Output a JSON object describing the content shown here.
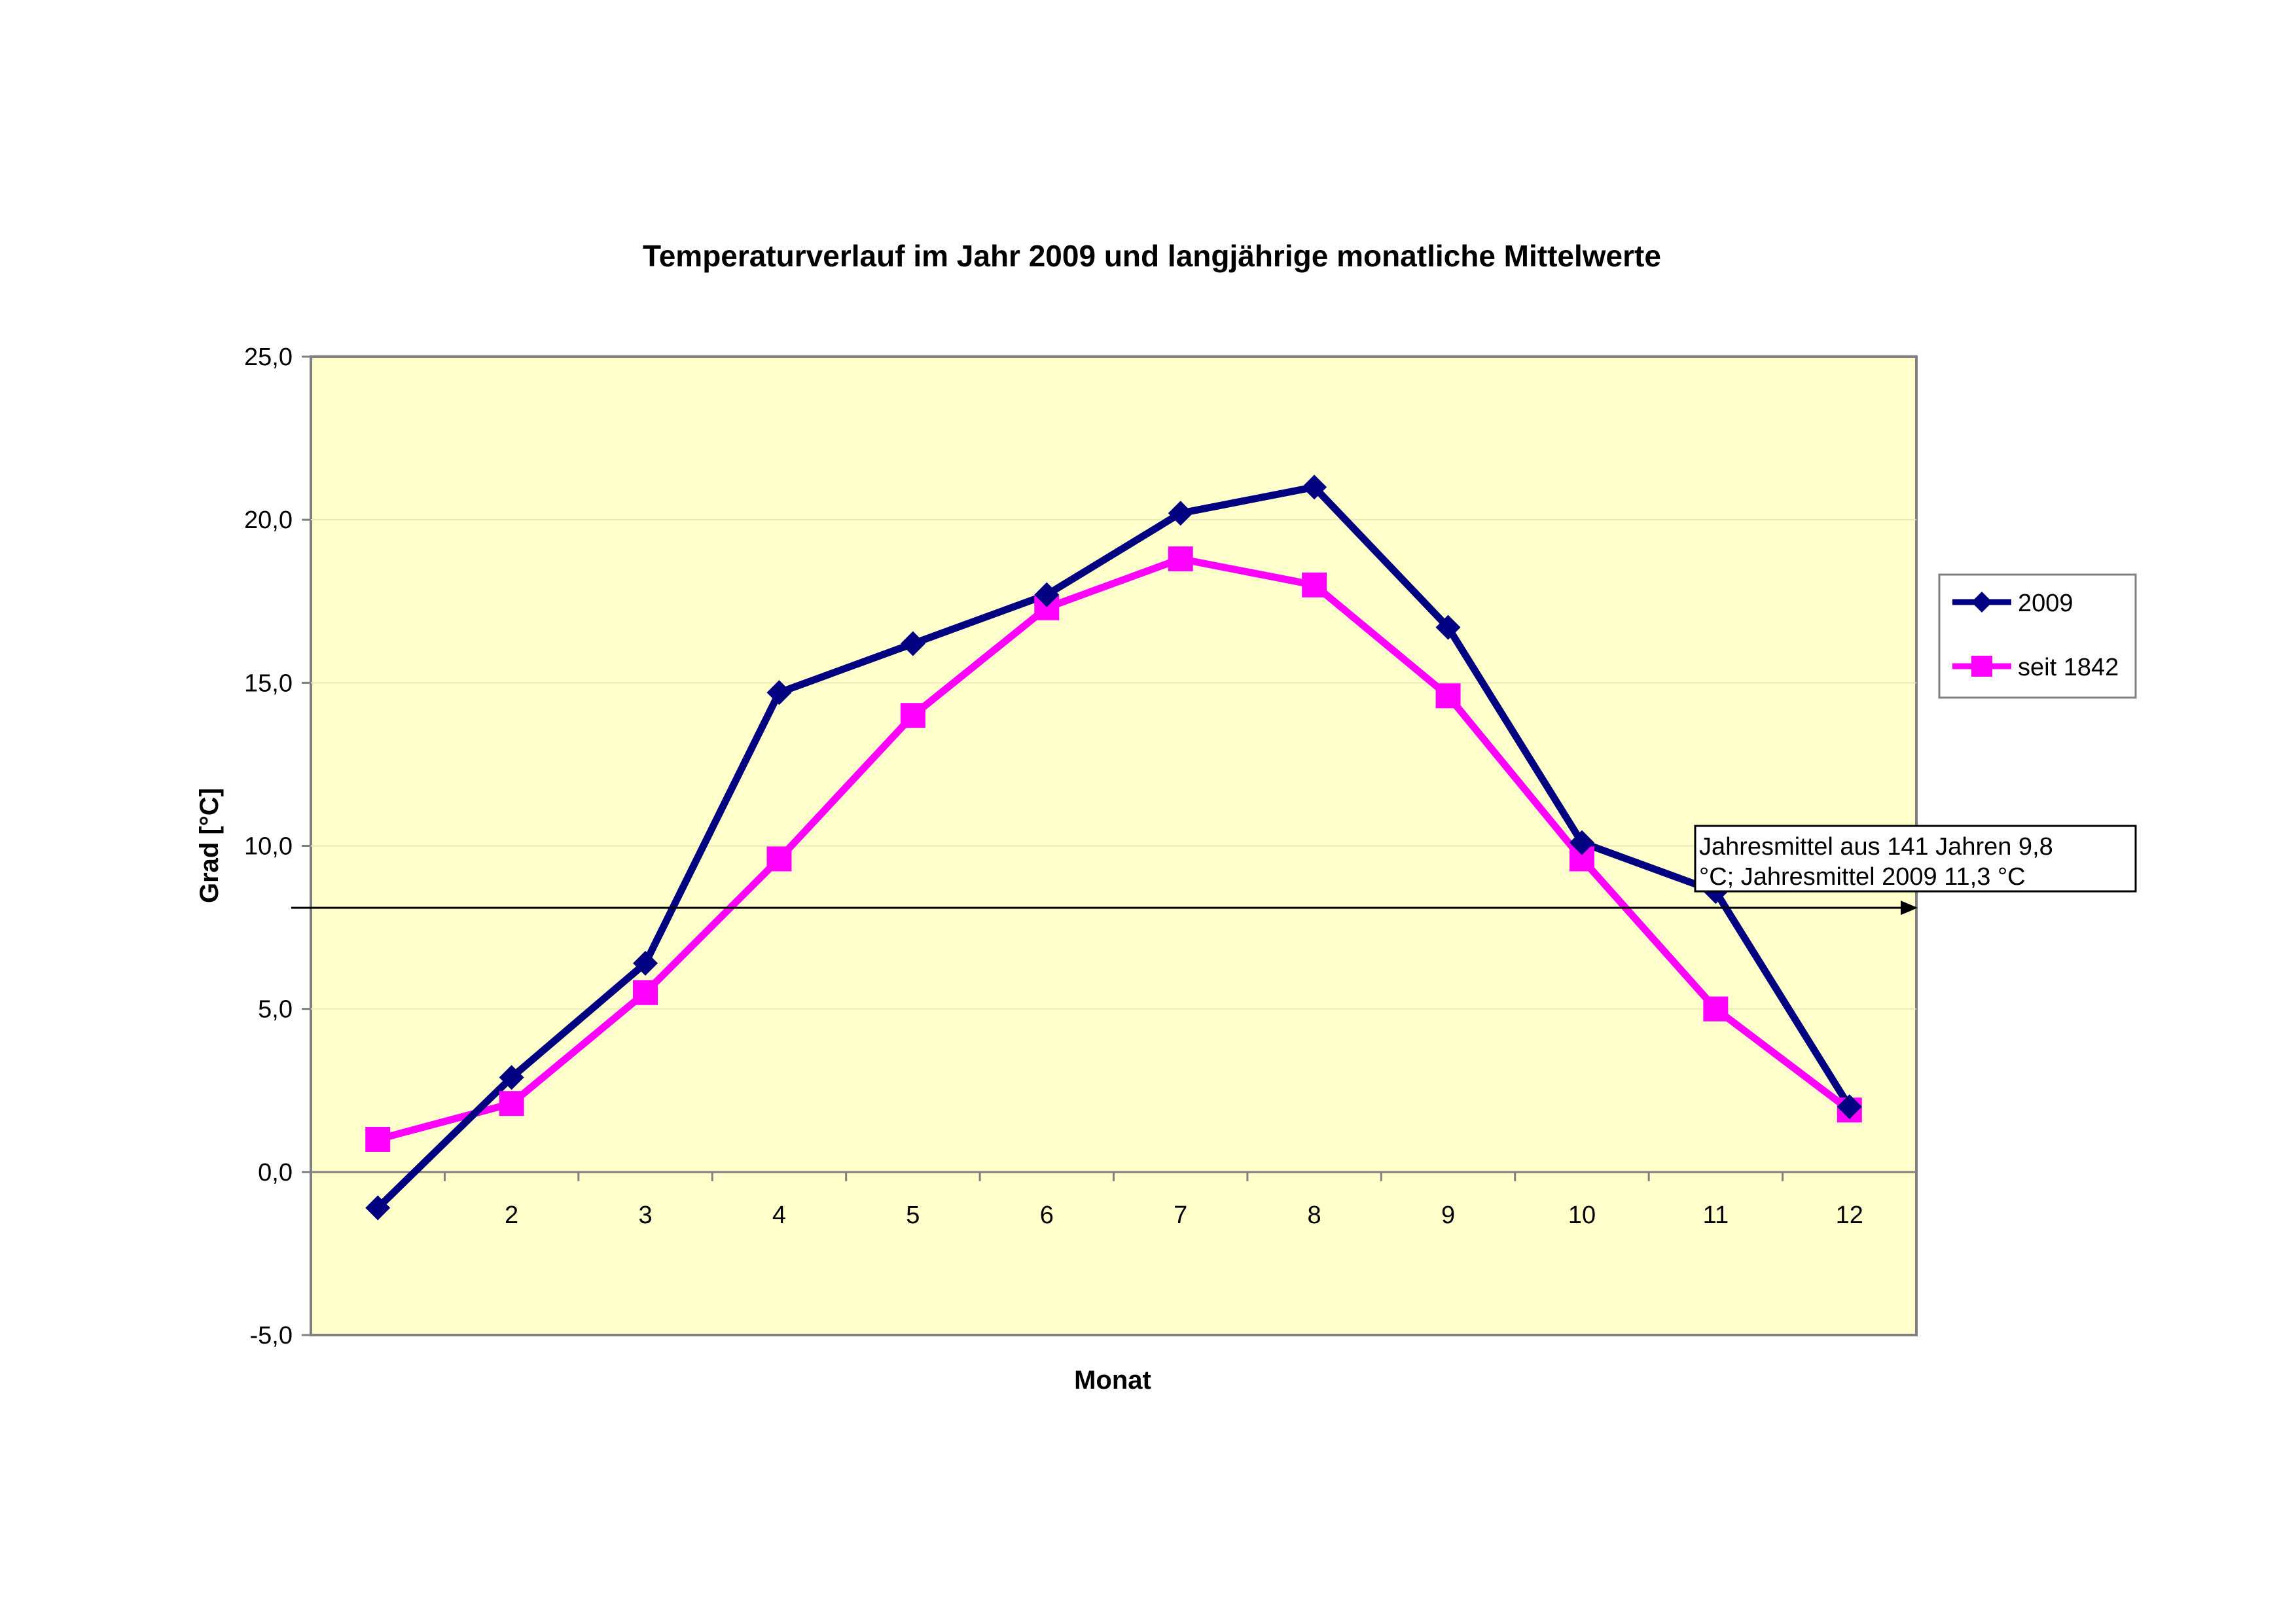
{
  "chart_data": {
    "type": "line",
    "title": "Temperaturverlauf im Jahr 2009 und langjährige monatliche Mittelwerte",
    "xlabel": "Monat",
    "ylabel": "Grad [°C]",
    "x": [
      1,
      2,
      3,
      4,
      5,
      6,
      7,
      8,
      9,
      10,
      11,
      12
    ],
    "x_tick_labels": [
      "",
      "2",
      "3",
      "4",
      "5",
      "6",
      "7",
      "8",
      "9",
      "10",
      "11",
      "12"
    ],
    "y_tick_labels": [
      "-5,0",
      "0,0",
      "5,0",
      "10,0",
      "15,0",
      "20,0",
      "25,0"
    ],
    "ylim": [
      -5,
      25
    ],
    "y_tick_step": 5,
    "grid": true,
    "legend": "right",
    "plot_background": "#FFFFCC",
    "series": [
      {
        "name": "2009",
        "color": "#000080",
        "marker": "diamond",
        "values": [
          -1.1,
          2.9,
          6.4,
          14.7,
          16.2,
          17.7,
          20.2,
          21.0,
          16.7,
          10.1,
          8.6,
          2.0
        ]
      },
      {
        "name": "seit 1842",
        "color": "#FF00FF",
        "marker": "square",
        "values": [
          1.0,
          2.1,
          5.5,
          9.6,
          14.0,
          17.3,
          18.8,
          18.0,
          14.6,
          9.6,
          5.0,
          1.9
        ]
      }
    ],
    "annotation": {
      "lines": [
        "Jahresmittel aus 141 Jahren 9,8",
        "°C; Jahresmittel 2009 11,3 °C"
      ],
      "arrow_y_value": 8.1
    }
  }
}
